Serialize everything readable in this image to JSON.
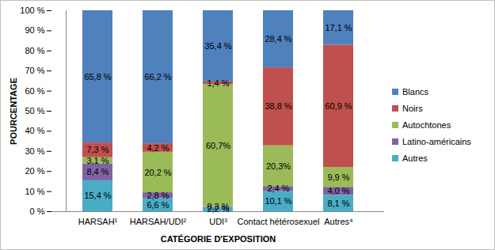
{
  "chart_data": {
    "type": "bar",
    "stacked": true,
    "data_labels": true,
    "grid": false,
    "legend": "right",
    "x_label": "CATÉGORIE D'EXPOSITION",
    "y_label": "POURCENTAGE",
    "categories": [
      "HARSAH¹",
      "HARSAH/UDI²",
      "UDI³",
      "Contact hétérosexuel",
      "Autres⁴"
    ],
    "ylim": [
      0,
      100
    ],
    "yticks": [
      {
        "value": 0,
        "label": "0 %"
      },
      {
        "value": 10,
        "label": "10 %"
      },
      {
        "value": 20,
        "label": "20 %"
      },
      {
        "value": 30,
        "label": "30 %"
      },
      {
        "value": 40,
        "label": "40 %"
      },
      {
        "value": 50,
        "label": "50 %"
      },
      {
        "value": 60,
        "label": "60 %"
      },
      {
        "value": 70,
        "label": "70 %"
      },
      {
        "value": 80,
        "label": "80 %"
      },
      {
        "value": 90,
        "label": "90 %"
      },
      {
        "value": 100,
        "label": "100 %"
      }
    ],
    "series": [
      {
        "name": "Autres",
        "color": "#4bacc6",
        "values": [
          15.4,
          6.6,
          2.2,
          10.1,
          8.1
        ],
        "value_labels": [
          "15,4 %",
          "6,6 %",
          "2,2 %",
          "10,1 %",
          "8,1 %"
        ]
      },
      {
        "name": "Latino-américains",
        "color": "#8064a2",
        "values": [
          8.4,
          2.8,
          0.3,
          2.4,
          4.0
        ],
        "value_labels": [
          "8,4 %",
          "2,8 %",
          "0,3 %",
          "2,4 %",
          "4,0 %"
        ]
      },
      {
        "name": "Autochtones",
        "color": "#9bbb59",
        "values": [
          3.1,
          20.2,
          60.7,
          20.3,
          9.9
        ],
        "value_labels": [
          "3,1 %",
          "20,2 %",
          "60,7%",
          "20,3%",
          "9,9 %"
        ]
      },
      {
        "name": "Noirs",
        "color": "#c0504d",
        "values": [
          7.3,
          4.2,
          1.4,
          38.8,
          60.9
        ],
        "value_labels": [
          "7,3 %",
          "4,2 %",
          "1,4 %",
          "38,8 %",
          "60,9 %"
        ]
      },
      {
        "name": "Blancs",
        "color": "#4f81bd",
        "values": [
          65.8,
          66.2,
          35.4,
          28.4,
          17.1
        ],
        "value_labels": [
          "65,8 %",
          "66,2 %",
          "35,4 %",
          "28,4 %",
          "17,1 %"
        ]
      }
    ]
  }
}
